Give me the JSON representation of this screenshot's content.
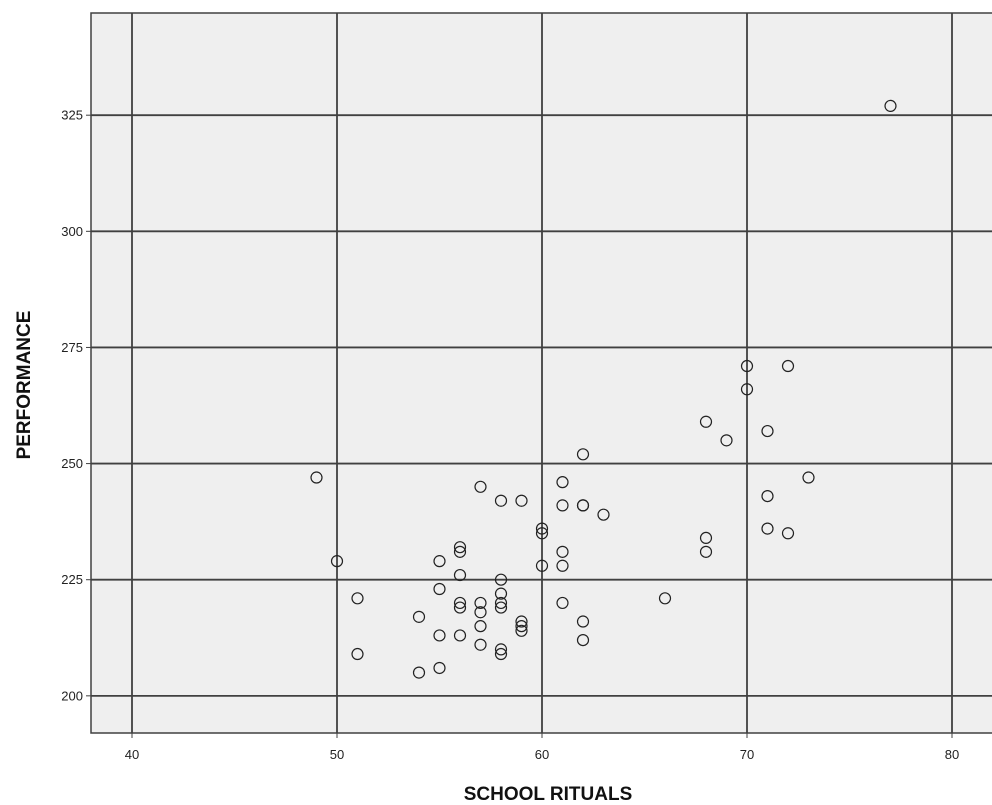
{
  "chart_data": {
    "type": "scatter",
    "title": "",
    "xlabel": "SCHOOL RITUALS",
    "ylabel": "PERFORMANCE",
    "xlim": [
      38,
      82
    ],
    "ylim": [
      192,
      347
    ],
    "xticks": [
      40,
      50,
      60,
      70,
      80
    ],
    "yticks": [
      200,
      225,
      250,
      275,
      300,
      325
    ],
    "grid": true,
    "marker": "hollow-circle",
    "colors": {
      "plot_background": "#efefef",
      "grid": "#404040",
      "marker_edge": "#222222"
    },
    "points": [
      {
        "x": 49,
        "y": 247
      },
      {
        "x": 50,
        "y": 229
      },
      {
        "x": 51,
        "y": 221
      },
      {
        "x": 51,
        "y": 209
      },
      {
        "x": 54,
        "y": 217
      },
      {
        "x": 54,
        "y": 205
      },
      {
        "x": 55,
        "y": 229
      },
      {
        "x": 55,
        "y": 223
      },
      {
        "x": 55,
        "y": 213
      },
      {
        "x": 55,
        "y": 206
      },
      {
        "x": 56,
        "y": 232
      },
      {
        "x": 56,
        "y": 231
      },
      {
        "x": 56,
        "y": 226
      },
      {
        "x": 56,
        "y": 220
      },
      {
        "x": 56,
        "y": 219
      },
      {
        "x": 56,
        "y": 213
      },
      {
        "x": 57,
        "y": 245
      },
      {
        "x": 57,
        "y": 220
      },
      {
        "x": 57,
        "y": 218
      },
      {
        "x": 57,
        "y": 215
      },
      {
        "x": 57,
        "y": 211
      },
      {
        "x": 58,
        "y": 242
      },
      {
        "x": 58,
        "y": 225
      },
      {
        "x": 58,
        "y": 222
      },
      {
        "x": 58,
        "y": 220
      },
      {
        "x": 58,
        "y": 219
      },
      {
        "x": 58,
        "y": 210
      },
      {
        "x": 58,
        "y": 209
      },
      {
        "x": 59,
        "y": 242
      },
      {
        "x": 59,
        "y": 216
      },
      {
        "x": 59,
        "y": 215
      },
      {
        "x": 59,
        "y": 214
      },
      {
        "x": 60,
        "y": 236
      },
      {
        "x": 60,
        "y": 235
      },
      {
        "x": 60,
        "y": 228
      },
      {
        "x": 61,
        "y": 246
      },
      {
        "x": 61,
        "y": 241
      },
      {
        "x": 61,
        "y": 231
      },
      {
        "x": 61,
        "y": 228
      },
      {
        "x": 61,
        "y": 220
      },
      {
        "x": 62,
        "y": 252
      },
      {
        "x": 62,
        "y": 241
      },
      {
        "x": 62,
        "y": 241
      },
      {
        "x": 62,
        "y": 216
      },
      {
        "x": 62,
        "y": 212
      },
      {
        "x": 63,
        "y": 239
      },
      {
        "x": 66,
        "y": 221
      },
      {
        "x": 68,
        "y": 259
      },
      {
        "x": 68,
        "y": 234
      },
      {
        "x": 68,
        "y": 231
      },
      {
        "x": 69,
        "y": 255
      },
      {
        "x": 70,
        "y": 271
      },
      {
        "x": 70,
        "y": 266
      },
      {
        "x": 71,
        "y": 257
      },
      {
        "x": 71,
        "y": 243
      },
      {
        "x": 71,
        "y": 236
      },
      {
        "x": 72,
        "y": 271
      },
      {
        "x": 72,
        "y": 235
      },
      {
        "x": 73,
        "y": 247
      },
      {
        "x": 77,
        "y": 327
      }
    ]
  }
}
